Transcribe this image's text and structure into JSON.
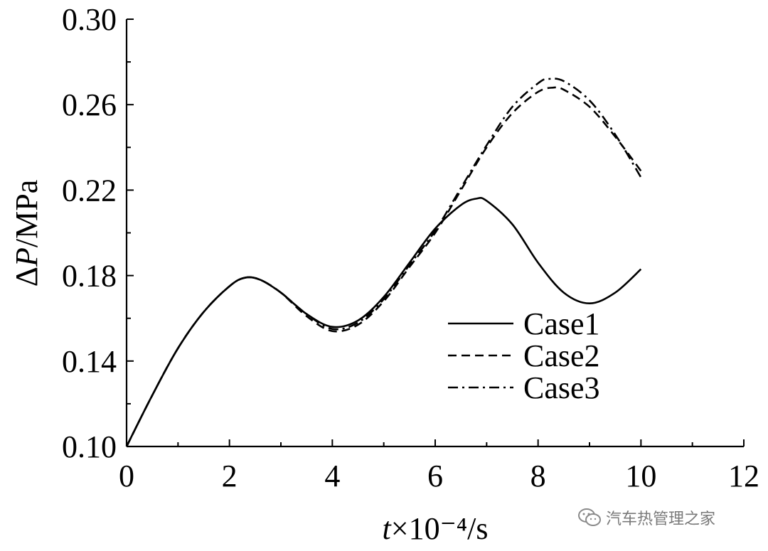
{
  "chart_data": {
    "type": "line",
    "title": "",
    "ylabel": "ΔP/MPa",
    "xlabel": "t×10⁻⁴/s",
    "xlim": [
      0,
      12
    ],
    "ylim": [
      0.1,
      0.3
    ],
    "xticks": [
      "0",
      "2",
      "4",
      "6",
      "8",
      "10",
      "12"
    ],
    "yticks": [
      "0.10",
      "0.14",
      "0.18",
      "0.22",
      "0.26",
      "0.30"
    ],
    "grid": false,
    "legend_position": "right",
    "series": [
      {
        "name": "Case1",
        "style": "solid",
        "x": [
          0,
          0.5,
          1,
          1.5,
          2,
          2.3,
          2.6,
          3,
          3.5,
          4,
          4.5,
          5,
          5.5,
          6,
          6.5,
          6.8,
          7,
          7.5,
          8,
          8.5,
          9,
          9.5,
          10
        ],
        "y": [
          0.1,
          0.124,
          0.146,
          0.163,
          0.175,
          0.179,
          0.178,
          0.172,
          0.162,
          0.156,
          0.159,
          0.17,
          0.186,
          0.202,
          0.213,
          0.216,
          0.215,
          0.204,
          0.186,
          0.172,
          0.167,
          0.172,
          0.183
        ]
      },
      {
        "name": "Case2",
        "style": "dashed",
        "x": [
          0,
          0.5,
          1,
          1.5,
          2,
          2.3,
          2.6,
          3,
          3.5,
          4,
          4.5,
          5,
          5.5,
          6,
          6.5,
          7,
          7.5,
          8,
          8.3,
          8.5,
          9,
          9.5,
          10
        ],
        "y": [
          0.1,
          0.124,
          0.146,
          0.163,
          0.175,
          0.179,
          0.178,
          0.172,
          0.161,
          0.154,
          0.157,
          0.168,
          0.184,
          0.2,
          0.22,
          0.24,
          0.256,
          0.266,
          0.268,
          0.267,
          0.259,
          0.245,
          0.229
        ]
      },
      {
        "name": "Case3",
        "style": "dashdot",
        "x": [
          0,
          0.5,
          1,
          1.5,
          2,
          2.3,
          2.6,
          3,
          3.5,
          4,
          4.5,
          5,
          5.5,
          6,
          6.5,
          7,
          7.5,
          8,
          8.2,
          8.5,
          9,
          9.5,
          10
        ],
        "y": [
          0.1,
          0.124,
          0.146,
          0.163,
          0.175,
          0.179,
          0.178,
          0.172,
          0.162,
          0.155,
          0.158,
          0.169,
          0.185,
          0.201,
          0.221,
          0.241,
          0.259,
          0.27,
          0.272,
          0.271,
          0.262,
          0.246,
          0.226
        ]
      }
    ]
  },
  "watermark": {
    "icon": "wechat-icon",
    "text": "汽车热管理之家"
  }
}
